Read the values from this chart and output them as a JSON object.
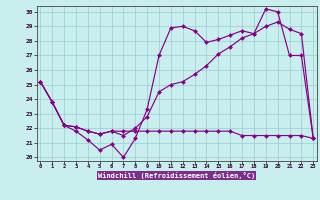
{
  "xlabel": "Windchill (Refroidissement éolien,°C)",
  "background_color": "#c8eeee",
  "label_band_color": "#7b4fa0",
  "line_color": "#880088",
  "grid_color": "#99cccc",
  "xlim_min": -0.3,
  "xlim_max": 23.3,
  "ylim_min": 19.75,
  "ylim_max": 30.4,
  "xticks": [
    0,
    1,
    2,
    3,
    4,
    5,
    6,
    7,
    8,
    9,
    10,
    11,
    12,
    13,
    14,
    15,
    16,
    17,
    18,
    19,
    20,
    21,
    22,
    23
  ],
  "yticks": [
    20,
    21,
    22,
    23,
    24,
    25,
    26,
    27,
    28,
    29,
    30
  ],
  "line1_x": [
    0,
    1,
    2,
    3,
    4,
    5,
    6,
    7,
    8,
    9,
    10,
    11,
    12,
    13,
    14,
    15,
    16,
    17,
    18,
    19,
    20,
    21,
    22,
    23
  ],
  "line1_y": [
    25.2,
    23.8,
    22.2,
    21.8,
    21.2,
    20.5,
    20.9,
    20.0,
    21.3,
    23.3,
    27.0,
    28.9,
    29.0,
    28.7,
    27.9,
    28.1,
    28.4,
    28.7,
    28.5,
    30.2,
    30.0,
    27.0,
    27.0,
    21.3
  ],
  "line2_x": [
    0,
    1,
    2,
    3,
    4,
    5,
    6,
    7,
    8,
    9,
    10,
    11,
    12,
    13,
    14,
    15,
    16,
    17,
    18,
    19,
    20,
    21,
    22,
    23
  ],
  "line2_y": [
    25.2,
    23.8,
    22.2,
    22.1,
    21.8,
    21.6,
    21.8,
    21.5,
    22.0,
    22.8,
    24.5,
    25.0,
    25.2,
    25.7,
    26.3,
    27.1,
    27.6,
    28.2,
    28.5,
    29.0,
    29.3,
    28.8,
    28.5,
    21.3
  ],
  "line3_x": [
    0,
    1,
    2,
    3,
    4,
    5,
    6,
    7,
    8,
    9,
    10,
    11,
    12,
    13,
    14,
    15,
    16,
    17,
    18,
    19,
    20,
    21,
    22,
    23
  ],
  "line3_y": [
    25.2,
    23.8,
    22.2,
    22.1,
    21.8,
    21.6,
    21.8,
    21.8,
    21.8,
    21.8,
    21.8,
    21.8,
    21.8,
    21.8,
    21.8,
    21.8,
    21.8,
    21.5,
    21.5,
    21.5,
    21.5,
    21.5,
    21.5,
    21.3
  ]
}
